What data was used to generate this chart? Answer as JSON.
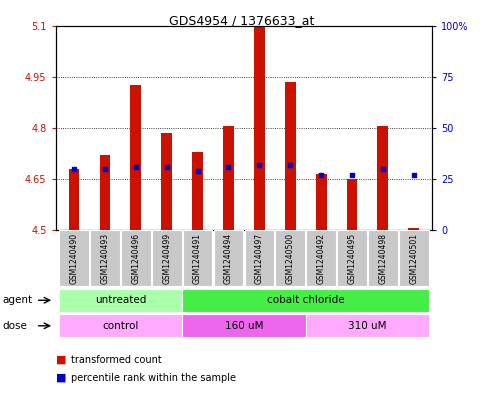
{
  "title": "GDS4954 / 1376633_at",
  "samples": [
    "GSM1240490",
    "GSM1240493",
    "GSM1240496",
    "GSM1240499",
    "GSM1240491",
    "GSM1240494",
    "GSM1240497",
    "GSM1240500",
    "GSM1240492",
    "GSM1240495",
    "GSM1240498",
    "GSM1240501"
  ],
  "red_values": [
    4.68,
    4.72,
    4.925,
    4.785,
    4.73,
    4.805,
    5.095,
    4.935,
    4.665,
    4.65,
    4.805,
    4.505
  ],
  "blue_values": [
    30,
    30,
    31,
    31,
    29,
    31,
    32,
    32,
    27,
    27,
    30,
    27
  ],
  "ymin": 4.5,
  "ymax": 5.1,
  "y2min": 0,
  "y2max": 100,
  "yticks": [
    4.5,
    4.65,
    4.8,
    4.95,
    5.1
  ],
  "ytick_labels": [
    "4.5",
    "4.65",
    "4.8",
    "4.95",
    "5.1"
  ],
  "y2ticks": [
    0,
    25,
    50,
    75,
    100
  ],
  "y2tick_labels": [
    "0",
    "25",
    "50",
    "75",
    "100%"
  ],
  "agent_groups": [
    {
      "label": "untreated",
      "start": 0,
      "end": 4,
      "color": "#aaffaa"
    },
    {
      "label": "cobalt chloride",
      "start": 4,
      "end": 12,
      "color": "#44ee44"
    }
  ],
  "dose_groups": [
    {
      "label": "control",
      "start": 0,
      "end": 4,
      "color": "#ffaaff"
    },
    {
      "label": "160 uM",
      "start": 4,
      "end": 8,
      "color": "#ee66ee"
    },
    {
      "label": "310 uM",
      "start": 8,
      "end": 12,
      "color": "#ffaaff"
    }
  ],
  "bar_width": 0.35,
  "bar_color": "#cc1100",
  "dot_color": "#0000cc",
  "sample_box_color": "#c8c8c8",
  "plot_bg": "#ffffff",
  "legend_red": "transformed count",
  "legend_blue": "percentile rank within the sample",
  "ylabel_color": "#cc1100",
  "y2label_color": "#0000cc",
  "grid_color": "#000000",
  "title_fontsize": 9,
  "tick_fontsize": 7,
  "legend_fontsize": 7,
  "label_fontsize": 7.5,
  "sample_fontsize": 5.5
}
